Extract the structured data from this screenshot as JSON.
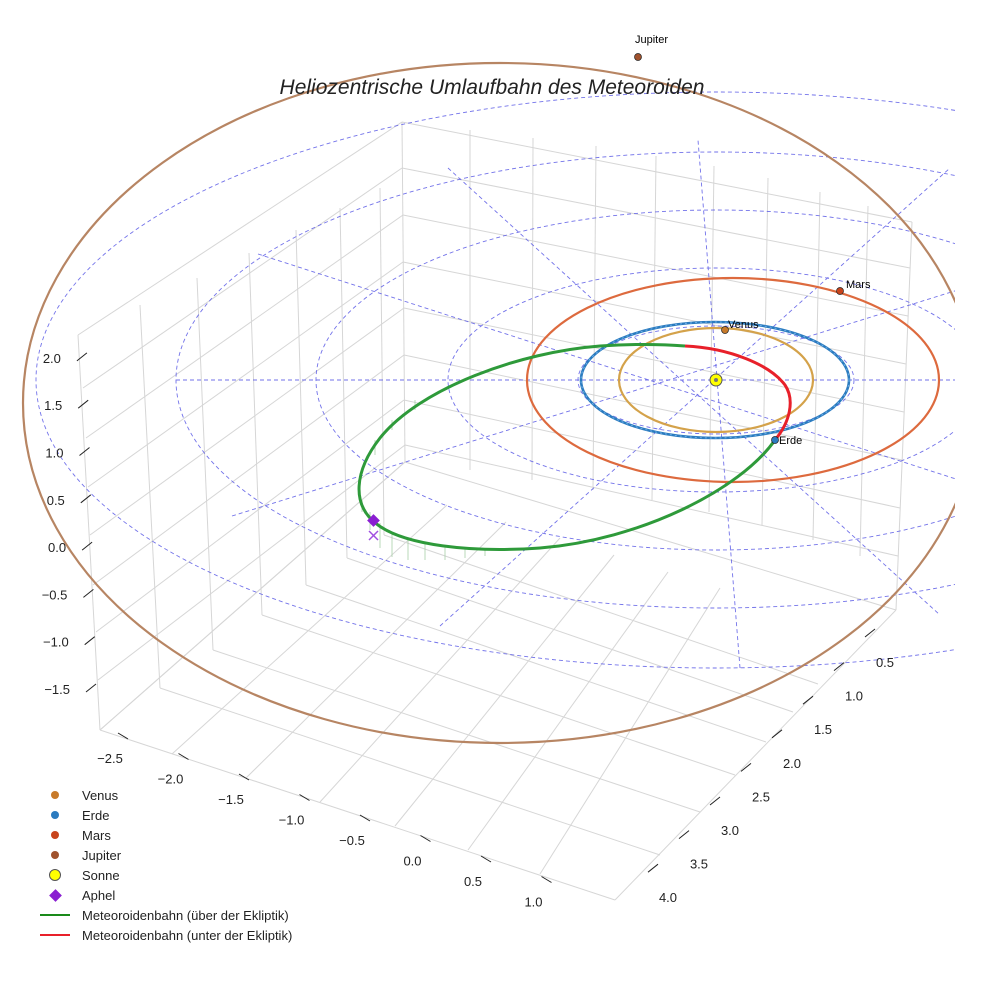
{
  "chart_data": {
    "type": "3d-line",
    "title": "Heliozentrische Umlaufbahn des Meteoroiden",
    "axes": {
      "x": {
        "ticks": [
          -2.5,
          -2.0,
          -1.5,
          -1.0,
          -0.5,
          0.0,
          0.5,
          1.0
        ],
        "tick_labels": [
          "−2.5",
          "−2.0",
          "−1.5",
          "−1.0",
          "−0.5",
          "0.0",
          "0.5",
          "1.0"
        ]
      },
      "y": {
        "ticks": [
          0.5,
          1.0,
          1.5,
          2.0,
          2.5,
          3.0,
          3.5,
          4.0
        ],
        "tick_labels": [
          "0.5",
          "1.0",
          "1.5",
          "2.0",
          "2.5",
          "3.0",
          "3.5",
          "4.0"
        ]
      },
      "z": {
        "ticks": [
          -1.5,
          -1.0,
          -0.5,
          0.0,
          0.5,
          1.0,
          1.5,
          2.0
        ],
        "tick_labels": [
          "−1.5",
          "−1.0",
          "−0.5",
          "0.0",
          "0.5",
          "1.0",
          "1.5",
          "2.0"
        ]
      }
    },
    "planets": [
      {
        "name": "Venus",
        "orbit_radius_au": 0.72,
        "color": "#d4a24a"
      },
      {
        "name": "Erde",
        "orbit_radius_au": 1.0,
        "color": "#2b7bbf"
      },
      {
        "name": "Mars",
        "orbit_radius_au": 1.52,
        "color": "#dd6a3e"
      },
      {
        "name": "Jupiter",
        "orbit_radius_au": 5.2,
        "color": "#b78563"
      }
    ],
    "sun": {
      "name": "Sonne",
      "color": "#ffff00"
    },
    "meteoroid_orbit": {
      "above_label": "Meteoroidenbahn (über der Ekliptik)",
      "below_label": "Meteoroidenbahn (unter der Ekliptik)",
      "above_color": "#2e9a3a",
      "below_color": "#e8202a",
      "aphelion_label": "Aphel",
      "aphelion_color": "#8a1fd1"
    },
    "legend": [
      {
        "label": "Venus",
        "kind": "dot",
        "color": "#c77a2a"
      },
      {
        "label": "Erde",
        "kind": "dot",
        "color": "#2b7bbf"
      },
      {
        "label": "Mars",
        "kind": "dot",
        "color": "#c8441c"
      },
      {
        "label": "Jupiter",
        "kind": "dot",
        "color": "#a0522d"
      },
      {
        "label": "Sonne",
        "kind": "bigdot",
        "color": "#ffff00"
      },
      {
        "label": "Aphel",
        "kind": "diamond",
        "color": "#8a1fd1"
      },
      {
        "label": "Meteoroidenbahn (über der Ekliptik)",
        "kind": "line",
        "color": "#1a8a1a"
      },
      {
        "label": "Meteoroidenbahn (unter der Ekliptik)",
        "kind": "line",
        "color": "#e8202a"
      }
    ]
  }
}
